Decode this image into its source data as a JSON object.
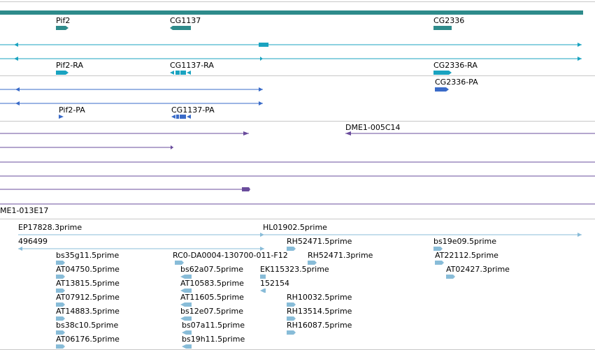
{
  "colors": {
    "gene": "#2e8b8b",
    "transcript": "#1aa3c0",
    "protein": "#3a6bc8",
    "bac": "#6a4c9c",
    "est": "#88bcd8",
    "separator": "#c8c8c8"
  },
  "gene_track": {
    "labels": [
      {
        "text": "Pif2"
      },
      {
        "text": "CG1137"
      },
      {
        "text": "CG2336"
      }
    ]
  },
  "transcript_track": {
    "labels": [
      {
        "text": "Pif2-RA"
      },
      {
        "text": "CG1137-RA"
      },
      {
        "text": "CG2336-RA"
      }
    ]
  },
  "protein_track": {
    "labels": [
      {
        "text": "CG2336-PA"
      },
      {
        "text": "Pif2-PA"
      },
      {
        "text": "CG1137-PA"
      }
    ]
  },
  "bac_track": {
    "labels": [
      {
        "text": "DME1-005C14"
      },
      {
        "text": "ME1-013E17"
      }
    ]
  },
  "est_track": {
    "labels": [
      {
        "text": "EP17828.3prime"
      },
      {
        "text": "HL01902.5prime"
      },
      {
        "text": "496499"
      },
      {
        "text": "RH52471.5prime"
      },
      {
        "text": "bs19e09.5prime"
      },
      {
        "text": "bs35g11.5prime"
      },
      {
        "text": "RC0-DA0004-130700-011-F12"
      },
      {
        "text": "RH52471.3prime"
      },
      {
        "text": "AT22112.5prime"
      },
      {
        "text": "AT04750.5prime"
      },
      {
        "text": "bs62a07.5prime"
      },
      {
        "text": "EK115323.5prime"
      },
      {
        "text": "AT02427.3prime"
      },
      {
        "text": "AT13815.5prime"
      },
      {
        "text": "AT10583.5prime"
      },
      {
        "text": "152154"
      },
      {
        "text": "AT07912.5prime"
      },
      {
        "text": "AT11605.5prime"
      },
      {
        "text": "RH10032.5prime"
      },
      {
        "text": "AT14883.5prime"
      },
      {
        "text": "bs12e07.5prime"
      },
      {
        "text": "RH13514.5prime"
      },
      {
        "text": "bs38c10.5prime"
      },
      {
        "text": "bs07a11.5prime"
      },
      {
        "text": "RH16087.5prime"
      },
      {
        "text": "AT06176.5prime"
      },
      {
        "text": "bs19h11.5prime"
      }
    ]
  }
}
